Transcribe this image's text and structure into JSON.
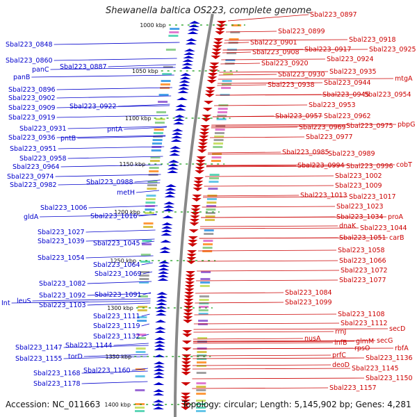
{
  "title": "Shewanella baltica OS223, complete genome",
  "footer": {
    "accession": "Accession: NC_011663",
    "summary": "Topology: circular; Length: 5,145,902 bp; Genes: 4,281"
  },
  "colors": {
    "forward_strand": "#0000cc",
    "reverse_strand": "#cc0000",
    "backbone": "#888888",
    "kbp_tick": "#119911"
  },
  "kbp_marks": [
    {
      "id": "1000",
      "label": "1000 kbp"
    },
    {
      "id": "1050",
      "label": "1050 kbp"
    },
    {
      "id": "1100",
      "label": "1100 kbp"
    },
    {
      "id": "1150",
      "label": "1150 kbp"
    },
    {
      "id": "1200",
      "label": "1200 kbp"
    },
    {
      "id": "1250",
      "label": "1250 kbp"
    },
    {
      "id": "1300",
      "label": "1300 kbp"
    },
    {
      "id": "1350",
      "label": "1350 kbp"
    },
    {
      "id": "1400",
      "label": "1400 kbp"
    }
  ],
  "left_labels": [
    {
      "text": "Sbal223_0848"
    },
    {
      "text": "Sbal223_0860"
    },
    {
      "text": "panC"
    },
    {
      "text": "Sbal223_0887"
    },
    {
      "text": "panB"
    },
    {
      "text": "Sbal223_0896"
    },
    {
      "text": "Sbal223_0902"
    },
    {
      "text": "Sbal223_0909"
    },
    {
      "text": "Sbal223_0922"
    },
    {
      "text": "Sbal223_0919"
    },
    {
      "text": "Sbal223_0931"
    },
    {
      "text": "pntA"
    },
    {
      "text": "Sbal223_0936"
    },
    {
      "text": "pntB"
    },
    {
      "text": "Sbal223_0951"
    },
    {
      "text": "Sbal223_0958"
    },
    {
      "text": "Sbal223_0964"
    },
    {
      "text": "Sbal223_0974"
    },
    {
      "text": "Sbal223_0988"
    },
    {
      "text": "Sbal223_0982"
    },
    {
      "text": "metH"
    },
    {
      "text": "Sbal223_1006"
    },
    {
      "text": "gldA"
    },
    {
      "text": "Sbal223_1016"
    },
    {
      "text": "Sbal223_1027"
    },
    {
      "text": "Sbal223_1039"
    },
    {
      "text": "Sbal223_1045"
    },
    {
      "text": "Sbal223_1054"
    },
    {
      "text": "Sbal223_1064"
    },
    {
      "text": "Sbal223_1069"
    },
    {
      "text": "Sbal223_1082"
    },
    {
      "text": "Sbal223_1091"
    },
    {
      "text": "Sbal223_1092"
    },
    {
      "text": "leuS"
    },
    {
      "text": "Int"
    },
    {
      "text": "Sbal223_1103"
    },
    {
      "text": "Sbal223_1111"
    },
    {
      "text": "Sbal223_1119"
    },
    {
      "text": "Sbal223_1132"
    },
    {
      "text": "Sbal223_1144"
    },
    {
      "text": "Sbal223_1147"
    },
    {
      "text": "Sbal223_1155"
    },
    {
      "text": "torD"
    },
    {
      "text": "Sbal223_1160"
    },
    {
      "text": "Sbal223_1168"
    },
    {
      "text": "Sbal223_1178"
    }
  ],
  "right_labels": [
    {
      "text": "Sbal223_0897"
    },
    {
      "text": "Sbal223_0899"
    },
    {
      "text": "Sbal223_0918"
    },
    {
      "text": "Sbal223_0901"
    },
    {
      "text": "Sbal223_0917"
    },
    {
      "text": "Sbal223_0925"
    },
    {
      "text": "Sbal223_0908"
    },
    {
      "text": "Sbal223_0924"
    },
    {
      "text": "Sbal223_0920"
    },
    {
      "text": "Sbal223_0935"
    },
    {
      "text": "Sbal223_0930"
    },
    {
      "text": "mtgA"
    },
    {
      "text": "Sbal223_0944"
    },
    {
      "text": "Sbal223_0938"
    },
    {
      "text": "Sbal223_0945"
    },
    {
      "text": "Sbal223_0954"
    },
    {
      "text": "Sbal223_0953"
    },
    {
      "text": "Sbal223_0957"
    },
    {
      "text": "Sbal223_0962"
    },
    {
      "text": "Sbal223_0969"
    },
    {
      "text": "Sbal223_0975"
    },
    {
      "text": "pbpG"
    },
    {
      "text": "Sbal223_0977"
    },
    {
      "text": "Sbal223_0985"
    },
    {
      "text": "Sbal223_0989"
    },
    {
      "text": "Sbal223_0994"
    },
    {
      "text": "Sbal223_0996"
    },
    {
      "text": "cobT"
    },
    {
      "text": "Sbal223_1002"
    },
    {
      "text": "Sbal223_1009"
    },
    {
      "text": "Sbal223_1013"
    },
    {
      "text": "Sbal223_1017"
    },
    {
      "text": "Sbal223_1023"
    },
    {
      "text": "Sbal223_1034"
    },
    {
      "text": "proA"
    },
    {
      "text": "dnaK"
    },
    {
      "text": "Sbal223_1044"
    },
    {
      "text": "Sbal223_1051"
    },
    {
      "text": "carB"
    },
    {
      "text": "Sbal223_1058"
    },
    {
      "text": "Sbal223_1066"
    },
    {
      "text": "Sbal223_1072"
    },
    {
      "text": "Sbal223_1077"
    },
    {
      "text": "Sbal223_1084"
    },
    {
      "text": "Sbal223_1099"
    },
    {
      "text": "Sbal223_1108"
    },
    {
      "text": "Sbal223_1112"
    },
    {
      "text": "rrnJ"
    },
    {
      "text": "secD"
    },
    {
      "text": "glmM"
    },
    {
      "text": "nusA"
    },
    {
      "text": "secG"
    },
    {
      "text": "infB"
    },
    {
      "text": "rpsO"
    },
    {
      "text": "rbfA"
    },
    {
      "text": "prfC"
    },
    {
      "text": "Sbal223_1136"
    },
    {
      "text": "deoD"
    },
    {
      "text": "Sbal223_1145"
    },
    {
      "text": "Sbal223_1150"
    },
    {
      "text": "Sbal223_1157"
    }
  ]
}
